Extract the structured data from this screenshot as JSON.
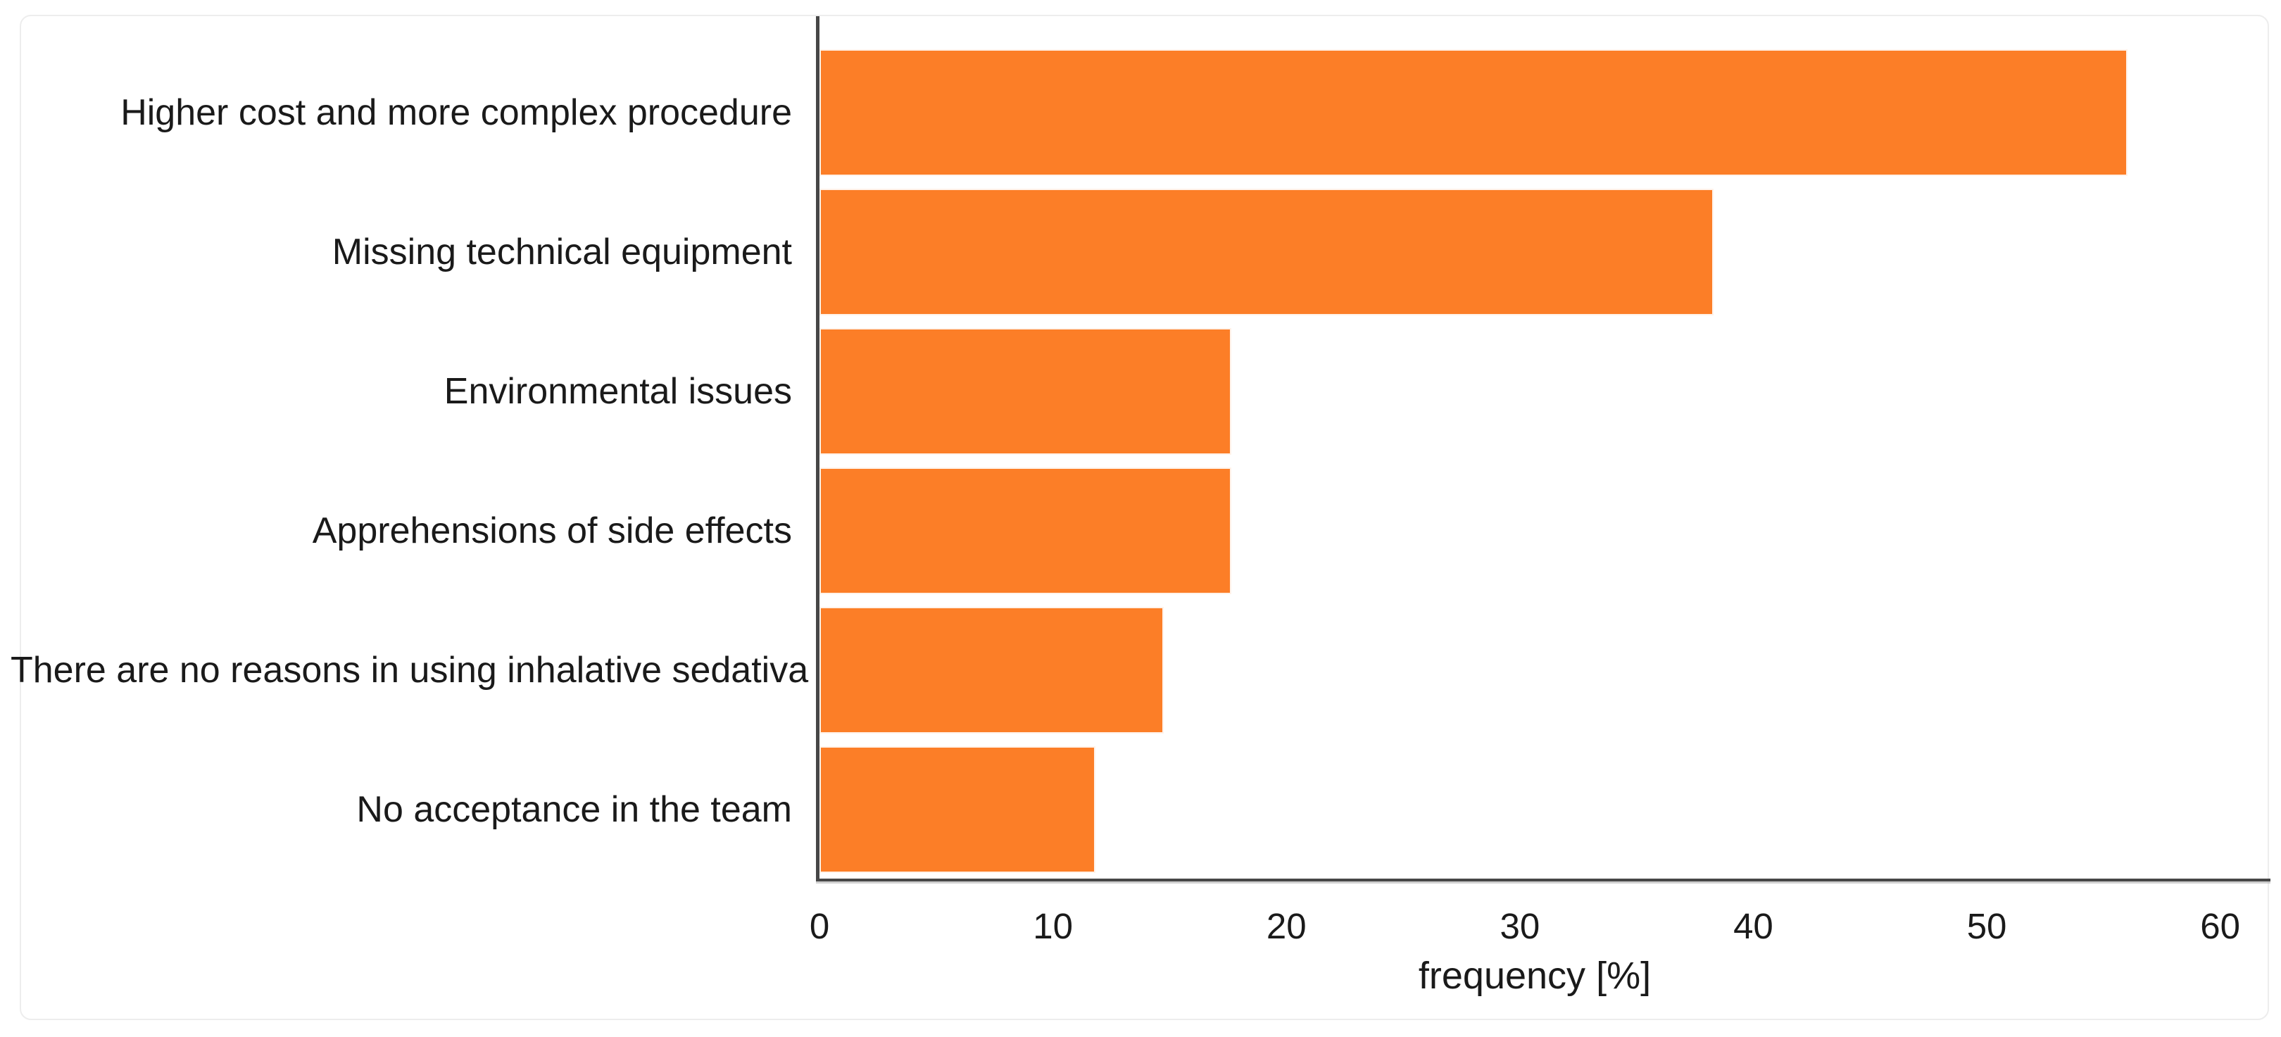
{
  "chart_data": {
    "type": "bar",
    "orientation": "horizontal",
    "categories": [
      "Higher cost and more complex procedure",
      "Missing technical equipment",
      "Environmental issues",
      "Apprehensions of side effects",
      "There are no reasons in using inhalative sedativa",
      "No acceptance in the team"
    ],
    "values": [
      55.9,
      38.2,
      17.6,
      17.6,
      14.7,
      11.8
    ],
    "xlabel": "frequency [%]",
    "xlim": [
      0,
      62
    ],
    "xticks": [
      0,
      10,
      20,
      30,
      40,
      50,
      60
    ],
    "grid": false,
    "legend": "none",
    "bar_color": "#FC7E27",
    "axis_color": "#474747",
    "text_color": "#1a1a1a"
  }
}
